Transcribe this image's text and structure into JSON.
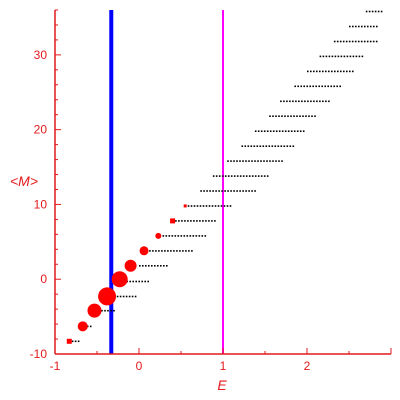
{
  "chart_data": {
    "type": "scatter",
    "xlabel": "E",
    "ylabel": "<M>",
    "xlim": [
      -1.0,
      3.0
    ],
    "ylim": [
      -10,
      36
    ],
    "xticks": [
      -1,
      0,
      1,
      2
    ],
    "yticks": [
      -10,
      0,
      10,
      20,
      30
    ],
    "grid": false,
    "vertical_lines": [
      {
        "x": -0.33,
        "color": "#0000ff"
      },
      {
        "x": 1.0,
        "color": "#ff00ff"
      }
    ],
    "colors": {
      "axis": "#e41a1c",
      "large_points": "#ff0000",
      "small_points": "#000000"
    },
    "series": [
      {
        "style": "large",
        "points": [
          {
            "x": -0.83,
            "y": -8.3,
            "s": 2.5
          },
          {
            "x": -0.67,
            "y": -6.3,
            "s": 5
          },
          {
            "x": -0.53,
            "y": -4.2,
            "s": 7
          },
          {
            "x": -0.38,
            "y": -2.3,
            "s": 9
          },
          {
            "x": -0.23,
            "y": 0.0,
            "s": 8
          },
          {
            "x": -0.1,
            "y": 1.8,
            "s": 6
          },
          {
            "x": 0.06,
            "y": 3.8,
            "s": 4.5
          },
          {
            "x": 0.23,
            "y": 5.8,
            "s": 3
          },
          {
            "x": 0.4,
            "y": 7.8,
            "s": 2.5
          },
          {
            "x": 0.55,
            "y": 9.8,
            "s": 1.5
          }
        ]
      },
      {
        "style": "small",
        "rows": [
          {
            "y": -8.3,
            "xmin": -0.8,
            "xmax": -0.7
          },
          {
            "y": -6.3,
            "xmin": -0.62,
            "xmax": -0.55
          },
          {
            "y": -4.2,
            "xmin": -0.45,
            "xmax": -0.3
          },
          {
            "y": -2.3,
            "xmin": -0.3,
            "xmax": -0.05
          },
          {
            "y": -0.3,
            "xmin": -0.15,
            "xmax": 0.1
          },
          {
            "y": 1.8,
            "xmin": 0.0,
            "xmax": 0.35
          },
          {
            "y": 3.8,
            "xmin": 0.12,
            "xmax": 0.62
          },
          {
            "y": 5.8,
            "xmin": 0.28,
            "xmax": 0.8
          },
          {
            "y": 7.8,
            "xmin": 0.43,
            "xmax": 0.9
          },
          {
            "y": 9.8,
            "xmin": 0.58,
            "xmax": 1.1
          },
          {
            "y": 11.8,
            "xmin": 0.73,
            "xmax": 1.4
          },
          {
            "y": 13.8,
            "xmin": 0.88,
            "xmax": 1.55
          },
          {
            "y": 15.8,
            "xmin": 1.05,
            "xmax": 1.7
          },
          {
            "y": 17.8,
            "xmin": 1.22,
            "xmax": 1.85
          },
          {
            "y": 19.8,
            "xmin": 1.38,
            "xmax": 1.98
          },
          {
            "y": 21.8,
            "xmin": 1.55,
            "xmax": 2.12
          },
          {
            "y": 23.8,
            "xmin": 1.68,
            "xmax": 2.27
          },
          {
            "y": 25.8,
            "xmin": 1.85,
            "xmax": 2.42
          },
          {
            "y": 27.8,
            "xmin": 2.0,
            "xmax": 2.55
          },
          {
            "y": 29.8,
            "xmin": 2.15,
            "xmax": 2.68
          },
          {
            "y": 31.8,
            "xmin": 2.32,
            "xmax": 2.82
          },
          {
            "y": 33.8,
            "xmin": 2.5,
            "xmax": 2.85
          },
          {
            "y": 35.8,
            "xmin": 2.7,
            "xmax": 2.88
          }
        ]
      }
    ]
  }
}
